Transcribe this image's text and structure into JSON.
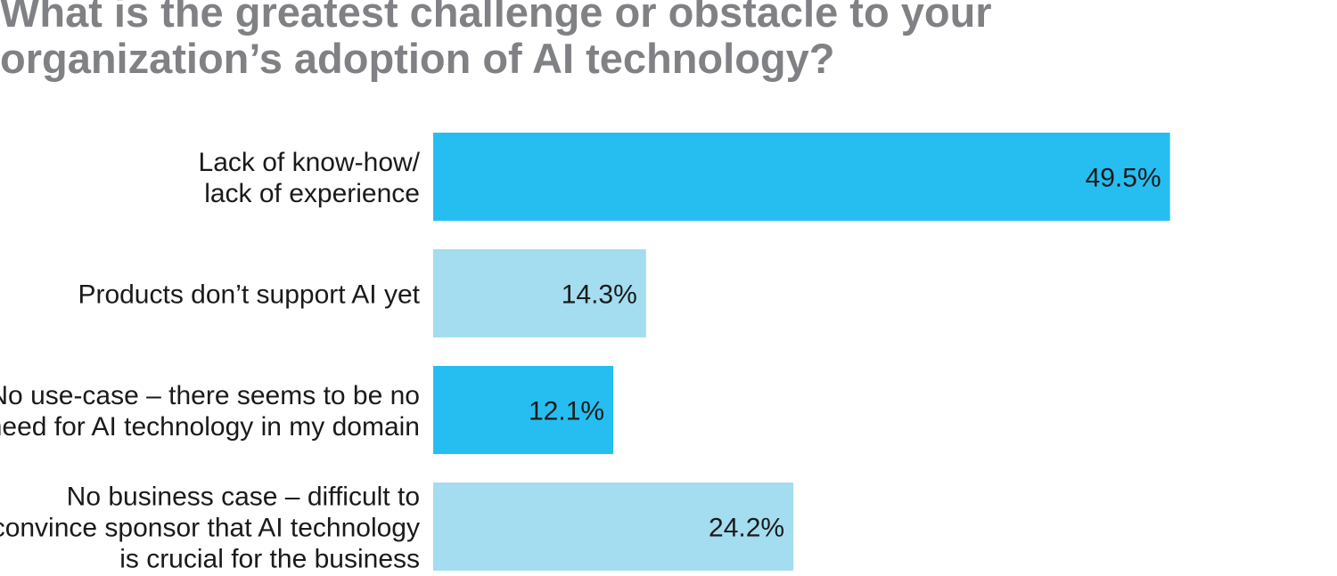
{
  "title_lines": [
    "What is the greatest challenge or obstacle to your",
    "organization’s adoption of AI technology?"
  ],
  "colors": {
    "bar_dark": "#26bef0",
    "bar_light": "#a4dcf0",
    "title": "#808184",
    "text": "#1a1a1a"
  },
  "chart_data": {
    "type": "bar",
    "orientation": "horizontal",
    "title": "What is the greatest challenge or obstacle to your organization’s adoption of AI technology?",
    "xlim": [
      0,
      60
    ],
    "grid": false,
    "categories": [
      [
        "Lack of know-how/",
        "lack of experience"
      ],
      [
        "Products don’t support AI yet"
      ],
      [
        "No use-case – there seems to be no",
        "need for AI technology in my domain"
      ],
      [
        "No business case – difficult to",
        "convince sponsor that AI technology",
        "is crucial for the business"
      ]
    ],
    "values": [
      49.5,
      14.3,
      12.1,
      24.2
    ],
    "value_labels": [
      "49.5%",
      "14.3%",
      "12.1%",
      "24.2%"
    ],
    "bar_colors": [
      "#26bef0",
      "#a4dcf0",
      "#26bef0",
      "#a4dcf0"
    ]
  }
}
